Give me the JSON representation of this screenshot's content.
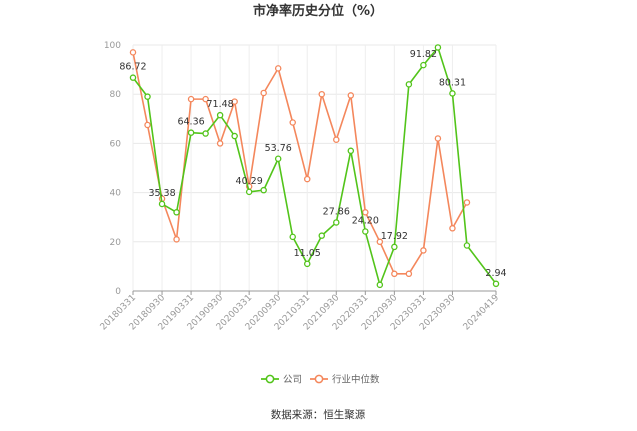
{
  "chart_data": {
    "type": "line",
    "title": "市净率历史分位（%）",
    "source": "数据来源：恒生聚源",
    "x": [
      "20180331",
      "20180630",
      "20180930",
      "20181231",
      "20190331",
      "20190630",
      "20190930",
      "20191231",
      "20200331",
      "20200630",
      "20200930",
      "20201231",
      "20210331",
      "20210630",
      "20210930",
      "20211231",
      "20220331",
      "20220630",
      "20220930",
      "20221231",
      "20230331",
      "20230630",
      "20230930",
      "20231231",
      "20240331",
      "20240419"
    ],
    "x_tick_labels": [
      "20180331",
      "20180930",
      "20190331",
      "20190930",
      "20200331",
      "20200930",
      "20210331",
      "20210930",
      "20220331",
      "20220930",
      "20230331",
      "20230930",
      "20240419"
    ],
    "x_tick_indices": [
      0,
      2,
      4,
      6,
      8,
      10,
      12,
      14,
      16,
      18,
      20,
      22,
      25
    ],
    "ylim": [
      0,
      100
    ],
    "yticks": [
      0,
      20,
      40,
      60,
      80,
      100
    ],
    "grid": true,
    "legend_position": "bottom",
    "series": [
      {
        "name": "公司",
        "color": "#52c41a",
        "values": [
          86.72,
          79,
          35.38,
          32,
          64.36,
          64,
          71.48,
          63,
          40.29,
          41,
          53.76,
          22,
          11.05,
          22.5,
          27.86,
          57,
          24.2,
          2.5,
          17.92,
          84,
          91.82,
          99,
          80.31,
          18.5,
          null,
          2.94
        ],
        "labels": {
          "0": "86.72",
          "2": "35.38",
          "4": "64.36",
          "6": "71.48",
          "8": "40.29",
          "10": "53.76",
          "12": "11.05",
          "14": "27.86",
          "16": "24.20",
          "18": "17.92",
          "20": "91.82",
          "22": "80.31",
          "25": "2.94"
        }
      },
      {
        "name": "行业中位数",
        "color": "#f4875c",
        "values": [
          97,
          67.5,
          37.5,
          21,
          78,
          78,
          60,
          77,
          42.5,
          80.5,
          90.5,
          68.5,
          45.5,
          80,
          61.5,
          79.5,
          32,
          20,
          7,
          7,
          16.5,
          62,
          25.5,
          36,
          null,
          null
        ]
      }
    ]
  }
}
